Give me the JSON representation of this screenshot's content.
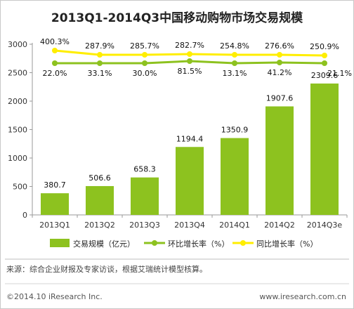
{
  "chart_data": {
    "type": "bar",
    "title": "2013Q1-2014Q3中国移动购物市场交易规模",
    "categories": [
      "2013Q1",
      "2013Q2",
      "2013Q3",
      "2013Q4",
      "2014Q1",
      "2014Q2",
      "2014Q3e"
    ],
    "ylim": [
      0,
      3000
    ],
    "yticks": [
      0,
      500,
      1000,
      1500,
      2000,
      2500,
      3000
    ],
    "grid": false,
    "legend_position": "bottom",
    "series": [
      {
        "name": "交易规模（亿元）",
        "type": "bar",
        "color": "#8dc21f",
        "values": [
          380.7,
          506.6,
          658.3,
          1194.4,
          1350.9,
          1907.6,
          2309.6
        ],
        "labels": [
          "380.7",
          "506.6",
          "658.3",
          "1194.4",
          "1350.9",
          "1907.6",
          "2309.6"
        ]
      },
      {
        "name": "环比增长率（%）",
        "type": "line",
        "color": "#8dc21f",
        "values": [
          22.0,
          33.1,
          30.0,
          81.5,
          13.1,
          41.2,
          21.1
        ],
        "labels": [
          "22.0%",
          "33.1%",
          "30.0%",
          "81.5%",
          "13.1%",
          "41.2%",
          "21.1%"
        ]
      },
      {
        "name": "同比增长率（%）",
        "type": "line",
        "color": "#ffee00",
        "values": [
          400.3,
          287.9,
          285.7,
          282.7,
          254.8,
          276.6,
          250.9
        ],
        "labels": [
          "400.3%",
          "287.9%",
          "285.7%",
          "282.7%",
          "254.8%",
          "276.6%",
          "250.9%"
        ]
      }
    ]
  },
  "source_note": "来源：综合企业财报及专家访谈，根据艾瑞统计模型核算。",
  "footer": {
    "copyright": "©2014.10 iResearch Inc.",
    "website": "www.iresearch.com.cn"
  }
}
